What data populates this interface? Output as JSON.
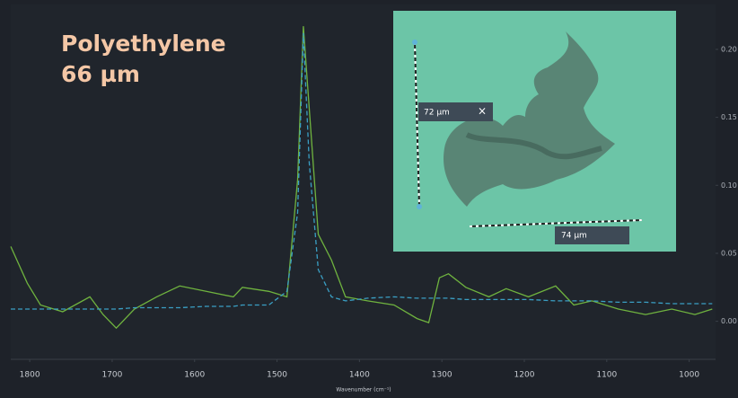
{
  "chart_data": {
    "type": "line",
    "annotation": [
      "Polyethylene",
      "66 µm"
    ],
    "x_label": "Wavenumber (cm⁻¹)",
    "inset_labels": [
      "72 µm",
      "74 µm"
    ],
    "x": [
      1823,
      1803,
      1787,
      1760,
      1727,
      1711,
      1695,
      1673,
      1646,
      1618,
      1586,
      1553,
      1542,
      1510,
      1488,
      1475,
      1468,
      1461,
      1450,
      1434,
      1417,
      1390,
      1358,
      1330,
      1316,
      1303,
      1292,
      1271,
      1243,
      1222,
      1195,
      1162,
      1140,
      1118,
      1086,
      1053,
      1021,
      993,
      972
    ],
    "series": [
      {
        "color": "#6fb33f",
        "style": "solid",
        "values": [
          0.055,
          0.028,
          0.012,
          0.007,
          0.018,
          0.005,
          -0.005,
          0.009,
          0.018,
          0.026,
          0.022,
          0.018,
          0.025,
          0.022,
          0.018,
          0.104,
          0.217,
          0.157,
          0.064,
          0.045,
          0.018,
          0.015,
          0.012,
          0.002,
          -0.001,
          0.032,
          0.035,
          0.025,
          0.018,
          0.024,
          0.018,
          0.026,
          0.012,
          0.015,
          0.009,
          0.005,
          0.009,
          0.005,
          0.009
        ]
      },
      {
        "color": "#3a9fc4",
        "style": "dashed",
        "values": [
          0.009,
          0.009,
          0.009,
          0.009,
          0.009,
          0.009,
          0.009,
          0.01,
          0.01,
          0.01,
          0.011,
          0.011,
          0.012,
          0.012,
          0.022,
          0.08,
          0.212,
          0.117,
          0.038,
          0.018,
          0.015,
          0.017,
          0.018,
          0.017,
          0.017,
          0.017,
          0.017,
          0.016,
          0.016,
          0.016,
          0.016,
          0.015,
          0.015,
          0.015,
          0.014,
          0.014,
          0.013,
          0.013,
          0.013
        ]
      }
    ],
    "xlim": [
      1823,
      968
    ],
    "ylim": [
      -0.028,
      0.233
    ],
    "xticks": [
      1800,
      1700,
      1600,
      1500,
      1400,
      1300,
      1200,
      1100,
      1000
    ],
    "yticks": [
      {
        "value": 0.2,
        "label": "0.20"
      },
      {
        "value": 0.15,
        "label": "0.15"
      },
      {
        "value": 0.1,
        "label": "0.10"
      },
      {
        "value": 0.05,
        "label": "0.05"
      },
      {
        "value": 0,
        "label": "0.00"
      }
    ]
  }
}
